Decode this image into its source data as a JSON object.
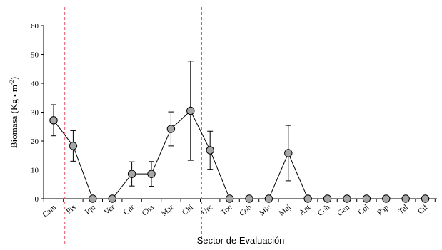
{
  "chart_data": {
    "type": "line",
    "xlabel": "Sector de Evaluación",
    "ylabel_main": "Biomasa (Kg ",
    "ylabel_bullet": "▪",
    "ylabel_unit": " m",
    "ylabel_exp": "-2",
    "ylabel_close": ")",
    "ylim": [
      0,
      60
    ],
    "yticks": [
      0,
      10,
      20,
      30,
      40,
      50,
      60
    ],
    "categories": [
      "Cam",
      "Pis",
      "Iqu",
      "Ver",
      "Car",
      "Cha",
      "Mar",
      "Chi",
      "Urc",
      "Toc",
      "Cob",
      "Mic",
      "Mej",
      "Ant",
      "Cob",
      "Gen",
      "Col",
      "Pap",
      "Tal",
      "Cif"
    ],
    "series": [
      {
        "values": [
          27.2,
          18.3,
          0,
          0,
          8.6,
          8.6,
          24.2,
          30.5,
          16.8,
          0,
          0,
          0,
          15.8,
          0,
          0,
          0,
          0,
          0,
          0,
          0
        ],
        "error": [
          5.4,
          5.3,
          0,
          0,
          4.2,
          4.3,
          5.9,
          17.2,
          6.6,
          0,
          0,
          0,
          9.6,
          0,
          0,
          0,
          0,
          0,
          0,
          0
        ]
      }
    ],
    "reference_lines_after_category": [
      "Cam",
      "Chi"
    ],
    "colors": {
      "marker_fill": "#a6a6a6",
      "marker_stroke": "#000000",
      "line": "#000000",
      "reference_line": "#e8546a"
    },
    "grid": false,
    "legend": "none"
  }
}
